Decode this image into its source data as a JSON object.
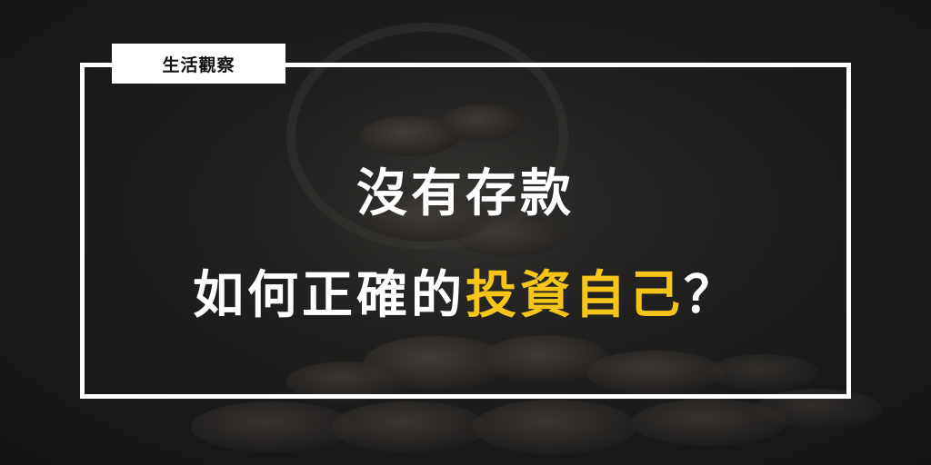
{
  "tag": {
    "label": "生活觀察"
  },
  "headline": {
    "line1": "沒有存款",
    "line2_prefix": "如何正確的",
    "line2_highlight": "投資自己",
    "line2_suffix": "？"
  },
  "colors": {
    "background": "#1c1c1c",
    "frame": "#ffffff",
    "text": "#ffffff",
    "highlight": "#f5c518"
  },
  "background_image": {
    "subject": "coins-spilling-from-jar"
  }
}
